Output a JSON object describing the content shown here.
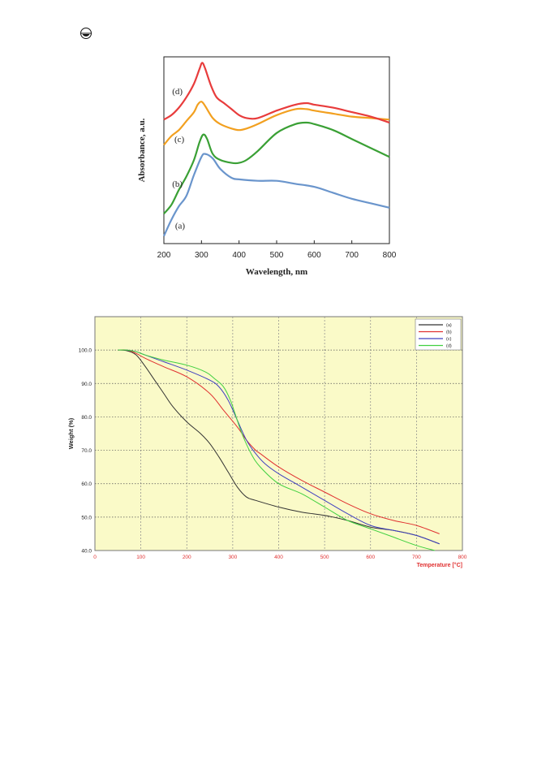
{
  "chart_data": [
    {
      "type": "line",
      "xlabel": "Wavelength, nm",
      "ylabel": "Absorbance, a.u.",
      "xlim": [
        200,
        800
      ],
      "xticks": [
        200,
        300,
        400,
        500,
        600,
        700,
        800
      ],
      "grid": false,
      "series": [
        {
          "name": "(a)",
          "color": "#6a95cc",
          "x": [
            200,
            220,
            240,
            260,
            280,
            300,
            310,
            330,
            350,
            380,
            400,
            450,
            500,
            550,
            600,
            650,
            700,
            750,
            800
          ],
          "y": [
            0.05,
            0.16,
            0.25,
            0.32,
            0.46,
            0.58,
            0.6,
            0.57,
            0.5,
            0.44,
            0.43,
            0.42,
            0.42,
            0.4,
            0.38,
            0.34,
            0.3,
            0.27,
            0.24
          ]
        },
        {
          "name": "(b)",
          "color": "#3aa035",
          "x": [
            200,
            220,
            240,
            260,
            280,
            295,
            305,
            315,
            330,
            350,
            380,
            400,
            420,
            450,
            500,
            550,
            580,
            600,
            650,
            700,
            750,
            800
          ],
          "y": [
            0.2,
            0.26,
            0.36,
            0.45,
            0.56,
            0.68,
            0.73,
            0.7,
            0.6,
            0.56,
            0.54,
            0.54,
            0.56,
            0.62,
            0.74,
            0.8,
            0.81,
            0.8,
            0.76,
            0.7,
            0.64,
            0.58
          ]
        },
        {
          "name": "(c)",
          "color": "#f2a020",
          "x": [
            200,
            220,
            240,
            260,
            280,
            290,
            300,
            310,
            330,
            350,
            380,
            400,
            420,
            450,
            500,
            550,
            580,
            600,
            650,
            700,
            750,
            800
          ],
          "y": [
            0.66,
            0.72,
            0.76,
            0.82,
            0.88,
            0.93,
            0.95,
            0.92,
            0.84,
            0.8,
            0.77,
            0.76,
            0.77,
            0.8,
            0.86,
            0.9,
            0.9,
            0.89,
            0.87,
            0.85,
            0.84,
            0.83
          ]
        },
        {
          "name": "(d)",
          "color": "#e83c3c",
          "x": [
            200,
            220,
            240,
            260,
            280,
            295,
            302,
            310,
            325,
            340,
            360,
            380,
            400,
            420,
            450,
            500,
            550,
            580,
            600,
            650,
            700,
            750,
            800
          ],
          "y": [
            0.83,
            0.86,
            0.91,
            0.98,
            1.07,
            1.17,
            1.21,
            1.17,
            1.06,
            0.98,
            0.94,
            0.9,
            0.86,
            0.84,
            0.84,
            0.89,
            0.93,
            0.94,
            0.93,
            0.91,
            0.88,
            0.85,
            0.81
          ]
        }
      ],
      "annotations": [
        "(a)",
        "(b)",
        "(c)",
        "(d)"
      ]
    },
    {
      "type": "line",
      "xlabel": "Temperature  [°C]",
      "ylabel": "Weight (%)",
      "xlim": [
        0,
        800
      ],
      "ylim": [
        40,
        110
      ],
      "xticks": [
        0,
        100,
        200,
        300,
        400,
        500,
        600,
        700,
        800
      ],
      "yticks": [
        "40.0",
        "50.0",
        "60.0",
        "70.0",
        "80.0",
        "90.0",
        "100.0"
      ],
      "grid": true,
      "legend": "top-right",
      "background": "#fafac8",
      "series": [
        {
          "name": "(a)",
          "color": "#333333",
          "x": [
            50,
            70,
            90,
            110,
            130,
            150,
            170,
            200,
            230,
            250,
            270,
            290,
            310,
            330,
            350,
            400,
            450,
            500,
            550,
            600,
            650,
            700,
            750
          ],
          "y": [
            100,
            99.8,
            98.5,
            95,
            91,
            87,
            83,
            78.5,
            75,
            72,
            68,
            63.5,
            59,
            56,
            55,
            53,
            51.5,
            50.5,
            49,
            47,
            46,
            44.5,
            42
          ]
        },
        {
          "name": "(b)",
          "color": "#e03030",
          "x": [
            50,
            70,
            90,
            110,
            150,
            200,
            250,
            280,
            310,
            330,
            350,
            360,
            400,
            450,
            500,
            550,
            600,
            650,
            700,
            750
          ],
          "y": [
            100,
            100,
            99,
            97.5,
            95,
            92,
            87,
            82,
            77,
            73,
            70,
            69,
            65,
            61,
            57.5,
            54,
            51,
            49,
            47.5,
            45
          ]
        },
        {
          "name": "(c)",
          "color": "#4040c0",
          "x": [
            50,
            70,
            90,
            110,
            150,
            200,
            250,
            270,
            290,
            310,
            330,
            350,
            370,
            400,
            450,
            500,
            550,
            600,
            650,
            700,
            750
          ],
          "y": [
            100,
            100,
            99.5,
            98.5,
            96.5,
            94,
            91,
            89,
            85,
            79,
            73,
            69,
            66,
            63,
            59,
            55,
            51,
            47.5,
            46,
            44.5,
            42
          ]
        },
        {
          "name": "(d)",
          "color": "#40d040",
          "x": [
            50,
            70,
            90,
            110,
            150,
            200,
            240,
            260,
            280,
            295,
            305,
            320,
            340,
            360,
            400,
            450,
            500,
            550,
            600,
            650,
            700,
            740
          ],
          "y": [
            100,
            100,
            99.5,
            98.5,
            97,
            95.5,
            93.5,
            91.5,
            89,
            85,
            81,
            75,
            69,
            65,
            60,
            57,
            53,
            49,
            46.5,
            44,
            41.5,
            40
          ]
        }
      ]
    }
  ]
}
